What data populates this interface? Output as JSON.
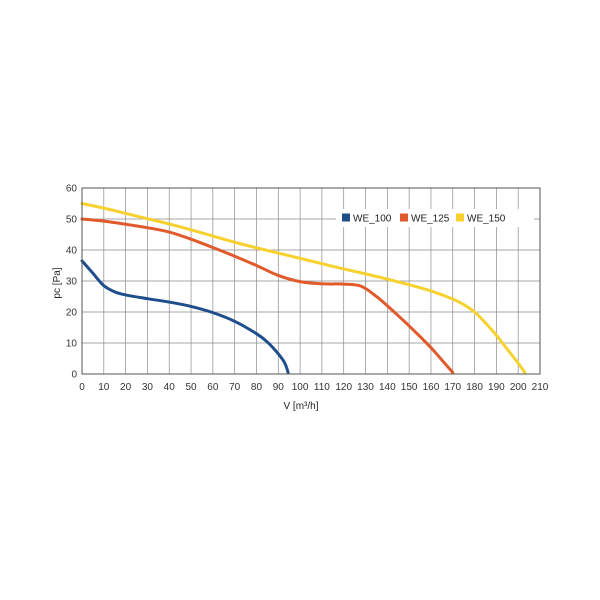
{
  "chart_data": {
    "type": "line",
    "title": "",
    "xlabel": "V [m³/h]",
    "ylabel": "pc [Pa]",
    "xlim": [
      0,
      210
    ],
    "ylim": [
      0,
      60
    ],
    "x_ticks": [
      0,
      10,
      20,
      30,
      40,
      50,
      60,
      70,
      80,
      90,
      100,
      110,
      120,
      130,
      140,
      150,
      160,
      170,
      180,
      190,
      200,
      210
    ],
    "y_ticks": [
      0,
      10,
      20,
      30,
      40,
      50,
      60
    ],
    "grid": true,
    "legend_position": "top-right",
    "series": [
      {
        "name": "WE_100",
        "color": "#1f4e8c",
        "points": [
          [
            0,
            36.5
          ],
          [
            5,
            32.5
          ],
          [
            10,
            28.5
          ],
          [
            15,
            26.5
          ],
          [
            20,
            25.5
          ],
          [
            30,
            24.3
          ],
          [
            40,
            23.2
          ],
          [
            50,
            21.8
          ],
          [
            60,
            19.8
          ],
          [
            70,
            17
          ],
          [
            80,
            13
          ],
          [
            85,
            10.3
          ],
          [
            90,
            6.5
          ],
          [
            93,
            3.5
          ],
          [
            94.5,
            0.5
          ]
        ]
      },
      {
        "name": "WE_125",
        "color": "#e05a2b",
        "points": [
          [
            0,
            50
          ],
          [
            10,
            49.3
          ],
          [
            20,
            48.3
          ],
          [
            30,
            47.2
          ],
          [
            40,
            45.8
          ],
          [
            50,
            43.5
          ],
          [
            60,
            40.8
          ],
          [
            70,
            38
          ],
          [
            80,
            35
          ],
          [
            90,
            31.8
          ],
          [
            100,
            29.8
          ],
          [
            110,
            29.1
          ],
          [
            120,
            29
          ],
          [
            128,
            28.3
          ],
          [
            135,
            25
          ],
          [
            140,
            22
          ],
          [
            150,
            15.5
          ],
          [
            160,
            8.5
          ],
          [
            165,
            4.5
          ],
          [
            170,
            0.5
          ]
        ]
      },
      {
        "name": "WE_150",
        "color": "#f7d12e",
        "points": [
          [
            0,
            55
          ],
          [
            10,
            53.5
          ],
          [
            20,
            51.8
          ],
          [
            30,
            50.1
          ],
          [
            40,
            48.4
          ],
          [
            50,
            46.5
          ],
          [
            60,
            44.5
          ],
          [
            70,
            42.5
          ],
          [
            80,
            40.7
          ],
          [
            90,
            39
          ],
          [
            100,
            37.3
          ],
          [
            110,
            35.6
          ],
          [
            120,
            33.9
          ],
          [
            130,
            32.3
          ],
          [
            140,
            30.6
          ],
          [
            150,
            28.8
          ],
          [
            160,
            26.8
          ],
          [
            170,
            24.2
          ],
          [
            175,
            22.4
          ],
          [
            180,
            20
          ],
          [
            185,
            16.5
          ],
          [
            190,
            12.5
          ],
          [
            195,
            8
          ],
          [
            200,
            3.5
          ],
          [
            203,
            0.5
          ]
        ]
      }
    ]
  }
}
